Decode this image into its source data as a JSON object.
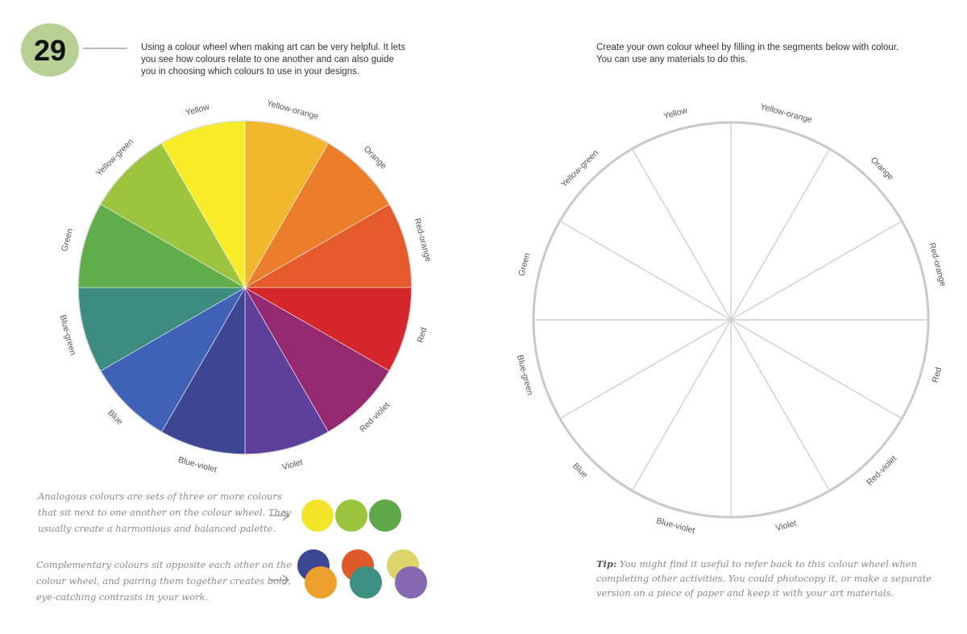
{
  "badge": "29",
  "left": {
    "intro": [
      "Using a colour wheel when making art can be very helpful. It lets",
      "you see how colours relate to one another and can also guide",
      "you in choosing which colours to use in your designs."
    ],
    "wheel": {
      "labels": [
        "Yellow-orange",
        "Orange",
        "Red-orange",
        "Red",
        "Red-violet",
        "Violet",
        "Blue-violet",
        "Blue",
        "Blue-green",
        "Green",
        "Yellow-green",
        "Yellow"
      ]
    },
    "analogous": [
      "Analogous colours are sets of three or more colours",
      "that sit next to one another on the colour wheel. They",
      "usually create a harmonious and balanced palette."
    ],
    "complementary": [
      "Complementary colours sit opposite each other on the",
      "colour wheel, and pairing them together creates bold,",
      "eye-catching contrasts in your work."
    ]
  },
  "right": {
    "intro": [
      "Create your own colour wheel by filling in the segments below with colour.",
      "You can use any materials to do this."
    ],
    "wheel": {
      "labels": [
        "Yellow-orange",
        "Orange",
        "Red-orange",
        "Red",
        "Red-violet",
        "Violet",
        "Blue-violet",
        "Blue",
        "Blue-green",
        "Green",
        "Yellow-green",
        "Yellow"
      ]
    },
    "tip": {
      "label": "Tip:",
      "lines": [
        "You might find it useful to refer back to this colour wheel when",
        "completing other activities. You could photocopy it, or make a separate",
        "version on a piece of paper and keep it with your art materials."
      ]
    }
  }
}
